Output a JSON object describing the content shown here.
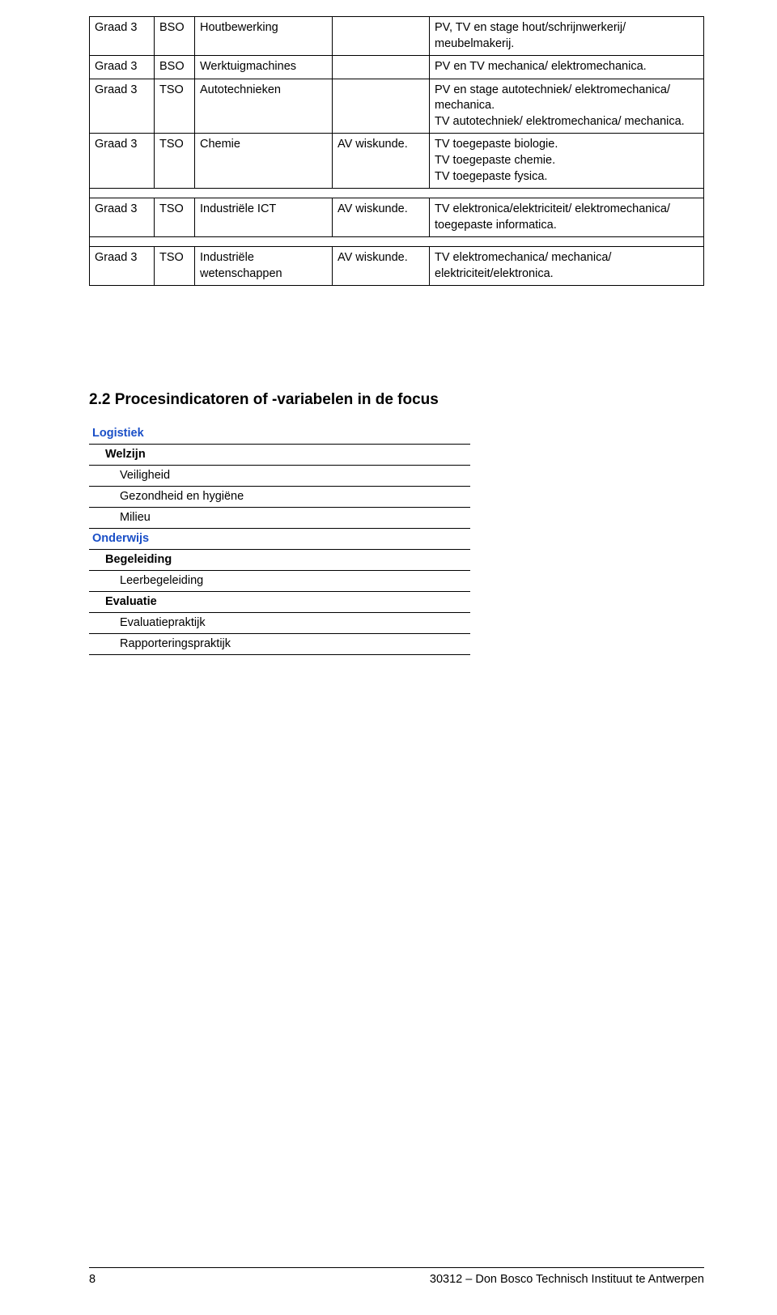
{
  "table1": {
    "rows": [
      {
        "c1": "Graad 3",
        "c2": "BSO",
        "c3": "Houtbewerking",
        "c4": "",
        "c5": "PV, TV en stage hout/schrijnwerkerij/ meubelmakerij."
      },
      {
        "c1": "Graad 3",
        "c2": "BSO",
        "c3": "Werktuigmachines",
        "c4": "",
        "c5": "PV en TV mechanica/ elektromechanica."
      },
      {
        "c1": "Graad 3",
        "c2": "TSO",
        "c3": "Autotechnieken",
        "c4": "",
        "c5": "PV en stage autotechniek/ elektromechanica/ mechanica.\nTV autotechniek/ elektromechanica/ mechanica."
      },
      {
        "c1": "Graad 3",
        "c2": "TSO",
        "c3": "Chemie",
        "c4": "AV wiskunde.",
        "c5": "TV toegepaste biologie.\nTV toegepaste chemie.\nTV toegepaste fysica."
      }
    ],
    "rows2": [
      {
        "c1": "Graad 3",
        "c2": "TSO",
        "c3": "Industriële ICT",
        "c4": "AV wiskunde.",
        "c5": "TV elektronica/elektriciteit/ elektromechanica/ toegepaste informatica."
      }
    ],
    "rows3": [
      {
        "c1": "Graad 3",
        "c2": "TSO",
        "c3": "Industriële wetenschappen",
        "c4": "AV wiskunde.",
        "c5": "TV elektromechanica/ mechanica/ elektriciteit/elektronica."
      }
    ]
  },
  "section": {
    "title": "2.2   Procesindicatoren of -variabelen in de focus",
    "items": [
      {
        "text": "Logistiek",
        "class": "blue"
      },
      {
        "text": "Welzijn",
        "class": "bold ind1"
      },
      {
        "text": "Veiligheid",
        "class": "ind2"
      },
      {
        "text": "Gezondheid en hygiëne",
        "class": "ind2"
      },
      {
        "text": "Milieu",
        "class": "ind2"
      },
      {
        "text": "Onderwijs",
        "class": "blue"
      },
      {
        "text": "Begeleiding",
        "class": "bold ind1"
      },
      {
        "text": "Leerbegeleiding",
        "class": "ind2"
      },
      {
        "text": "Evaluatie",
        "class": "bold ind1"
      },
      {
        "text": "Evaluatiepraktijk",
        "class": "ind2"
      },
      {
        "text": "Rapporteringspraktijk",
        "class": "ind2"
      }
    ]
  },
  "footer": {
    "page": "8",
    "text": "30312 – Don Bosco Technisch Instituut te Antwerpen"
  }
}
